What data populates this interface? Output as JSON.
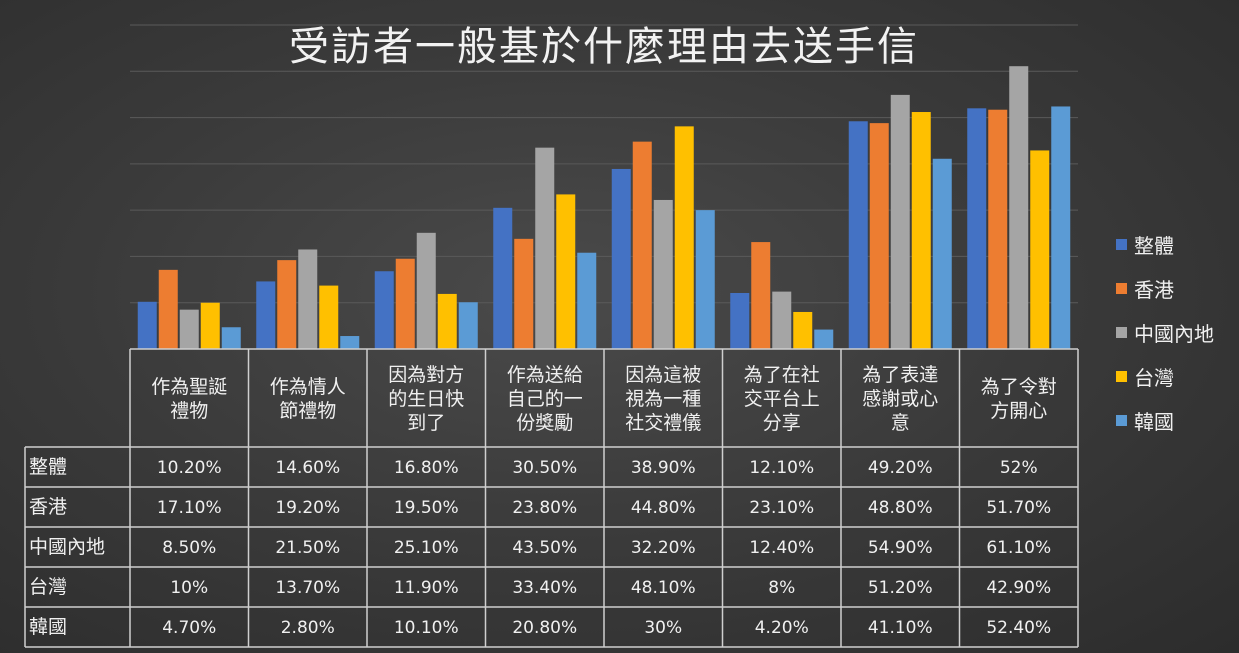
{
  "chart_data": {
    "type": "bar",
    "title": "受訪者一般基於什麼理由去送手信",
    "categories": [
      [
        "作為聖誕",
        "禮物"
      ],
      [
        "作為情人",
        "節禮物"
      ],
      [
        "因為對方",
        "的生日快",
        "到了"
      ],
      [
        "作為送給",
        "自己的一",
        "份獎勵"
      ],
      [
        "因為這被",
        "視為一種",
        "社交禮儀"
      ],
      [
        "為了在社",
        "交平台上",
        "分享"
      ],
      [
        "為了表達",
        "感謝或心",
        "意"
      ],
      [
        "為了令對",
        "方開心"
      ]
    ],
    "series": [
      {
        "name": "整體",
        "color": "#4472c4",
        "values": [
          10.2,
          14.6,
          16.8,
          30.5,
          38.9,
          12.1,
          49.2,
          52
        ],
        "labels": [
          "10.20%",
          "14.60%",
          "16.80%",
          "30.50%",
          "38.90%",
          "12.10%",
          "49.20%",
          "52%"
        ]
      },
      {
        "name": "香港",
        "color": "#ed7d31",
        "values": [
          17.1,
          19.2,
          19.5,
          23.8,
          44.8,
          23.1,
          48.8,
          51.7
        ],
        "labels": [
          "17.10%",
          "19.20%",
          "19.50%",
          "23.80%",
          "44.80%",
          "23.10%",
          "48.80%",
          "51.70%"
        ]
      },
      {
        "name": "中國內地",
        "color": "#a5a5a5",
        "values": [
          8.5,
          21.5,
          25.1,
          43.5,
          32.2,
          12.4,
          54.9,
          61.1
        ],
        "labels": [
          "8.50%",
          "21.50%",
          "25.10%",
          "43.50%",
          "32.20%",
          "12.40%",
          "54.90%",
          "61.10%"
        ]
      },
      {
        "name": "台灣",
        "color": "#ffc000",
        "values": [
          10,
          13.7,
          11.9,
          33.4,
          48.1,
          8,
          51.2,
          42.9
        ],
        "labels": [
          "10%",
          "13.70%",
          "11.90%",
          "33.40%",
          "48.10%",
          "8%",
          "51.20%",
          "42.90%"
        ]
      },
      {
        "name": "韓國",
        "color": "#5b9bd5",
        "values": [
          4.7,
          2.8,
          10.1,
          20.8,
          30,
          4.2,
          41.1,
          52.4
        ],
        "labels": [
          "4.70%",
          "2.80%",
          "10.10%",
          "20.80%",
          "30%",
          "4.20%",
          "41.10%",
          "52.40%"
        ]
      }
    ],
    "ylim": [
      0,
      70
    ],
    "grid": true,
    "legend_position": "right",
    "data_table": true
  }
}
